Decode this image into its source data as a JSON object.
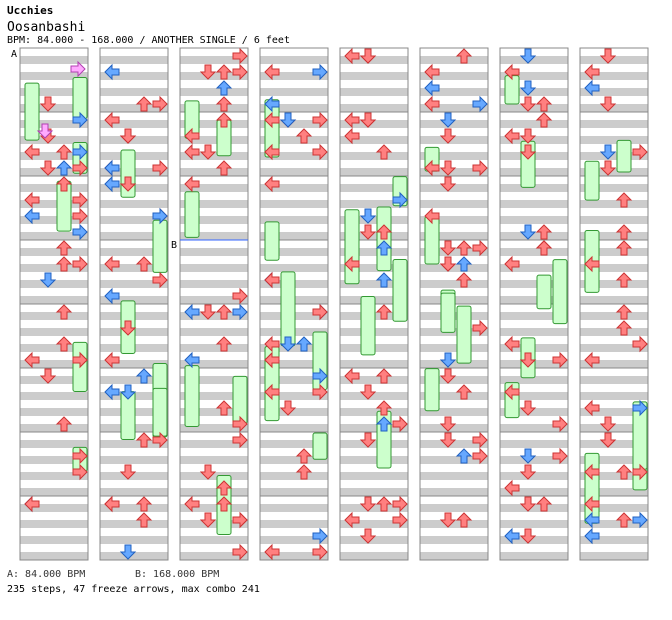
{
  "header": {
    "artist": "Ucchies",
    "song": "Oosanbashi",
    "info": "BPM: 84.000 - 168.000 / ANOTHER SINGLE / 6 feet"
  },
  "markers": {
    "a": "A",
    "b": "B"
  },
  "footer": {
    "bpm_a": "A: 84.000 BPM",
    "bpm_b": "B: 168.000 BPM",
    "stats": "235 steps, 47 freeze arrows, max combo 241"
  },
  "colors": {
    "stripe": "#cccccc",
    "measure_line": "#888888",
    "red": "#ff8080",
    "red_stroke": "#cc3333",
    "blue": "#66a8ff",
    "blue_stroke": "#2060c0",
    "pink": "#ffaaff",
    "pink_stroke": "#b040b0",
    "freeze": "#ccffcc",
    "freeze_stroke": "#339933",
    "bpm_line": "#3366ff"
  },
  "chart_data": {
    "type": "step-chart",
    "columns": 8,
    "measures_per_column": 8,
    "lanes": [
      "left",
      "down",
      "up",
      "right"
    ],
    "steps_total": 235,
    "freeze_total": 47,
    "max_combo": 241
  }
}
